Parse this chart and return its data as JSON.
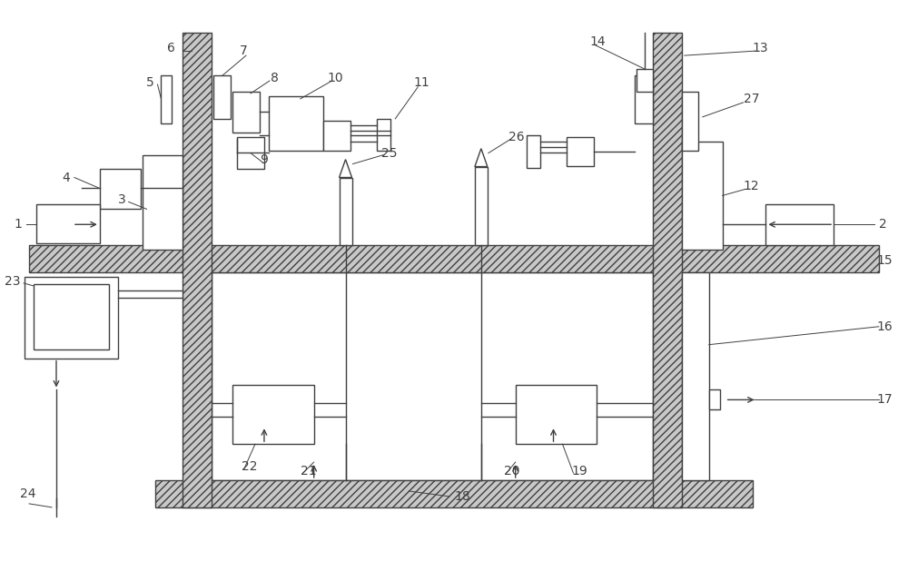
{
  "fig_width": 10.0,
  "fig_height": 6.18,
  "bg_color": "#ffffff",
  "lc": "#404040",
  "lw": 1.0,
  "fs": 10,
  "hatch_fc": "#c8c8c8",
  "white": "#ffffff"
}
